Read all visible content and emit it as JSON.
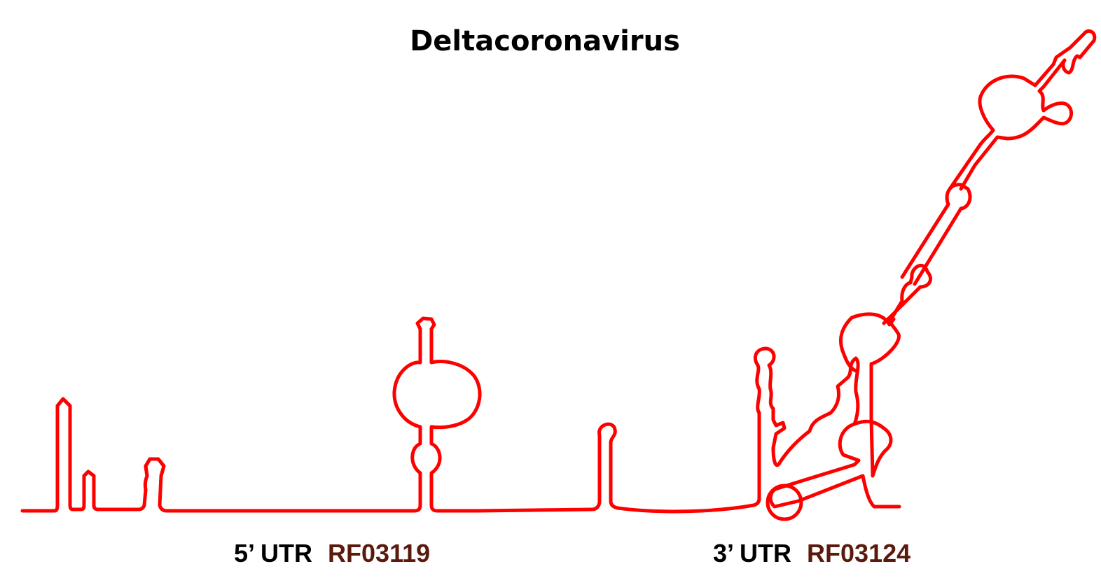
{
  "title": "Deltacoronavirus",
  "colors": {
    "structure": "#ff0000",
    "accession": "#5a1a0c",
    "label": "#000000"
  },
  "regions": [
    {
      "utr": "5’ UTR",
      "accession": "RF03119"
    },
    {
      "utr": "3’ UTR",
      "accession": "RF03124"
    }
  ]
}
